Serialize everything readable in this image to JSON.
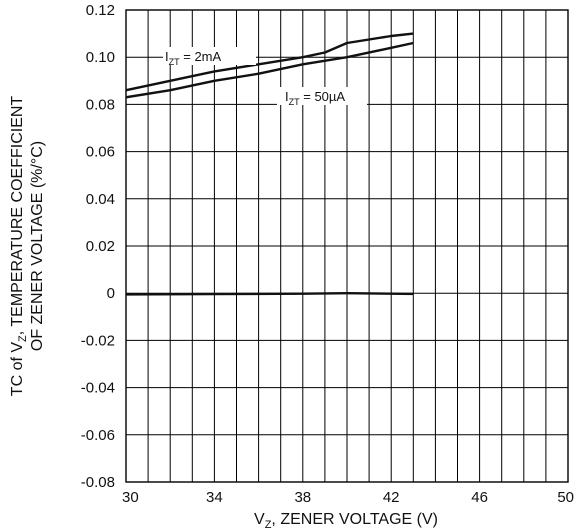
{
  "chart_data": {
    "type": "line",
    "xlabel": "V",
    "xlabel_sub": "Z",
    "xlabel_rest": ", ZENER VOLTAGE (V)",
    "ylabel_line1_pre": "TC of V",
    "ylabel_line1_sub": "Z",
    "ylabel_line1_post": ", TEMPERATURE COEFFICIENT",
    "ylabel_line2": "OF ZENER VOLTAGE (%/°C)",
    "xlim": [
      30,
      50
    ],
    "ylim": [
      -0.08,
      0.12
    ],
    "x_ticks": [
      "30",
      "34",
      "38",
      "42",
      "46",
      "50"
    ],
    "x_tick_values": [
      30,
      34,
      38,
      42,
      46,
      50
    ],
    "y_ticks": [
      "0.12",
      "0.10",
      "0.08",
      "0.06",
      "0.04",
      "0.02",
      "0",
      "-0.02",
      "-0.04",
      "-0.06",
      "-0.08"
    ],
    "y_tick_values": [
      0.12,
      0.1,
      0.08,
      0.06,
      0.04,
      0.02,
      0,
      -0.02,
      -0.04,
      -0.06,
      -0.08
    ],
    "grid": true,
    "grid_x_step": 1,
    "grid_y_step": 0.02,
    "annotations": [
      {
        "text_pre": "I",
        "text_sub": "ZT",
        "text_post": " = 2mA",
        "series": 0
      },
      {
        "text_pre": "I",
        "text_sub": "ZT",
        "text_post": " = 50µA",
        "series": 1
      }
    ],
    "series": [
      {
        "name": "IZT = 2mA",
        "x": [
          30,
          32,
          34,
          36,
          38,
          39,
          40,
          42,
          43
        ],
        "y": [
          0.086,
          0.09,
          0.094,
          0.097,
          0.1,
          0.102,
          0.106,
          0.109,
          0.11
        ]
      },
      {
        "name": "IZT = 50µA",
        "x": [
          30,
          32,
          34,
          36,
          38,
          40,
          42,
          43
        ],
        "y": [
          0.083,
          0.086,
          0.09,
          0.093,
          0.097,
          0.1,
          0.104,
          0.106
        ]
      },
      {
        "name": "",
        "x": [
          30,
          34,
          38,
          40,
          43
        ],
        "y": [
          -0.0005,
          -0.0004,
          -0.0002,
          0,
          -0.0003
        ]
      }
    ]
  }
}
